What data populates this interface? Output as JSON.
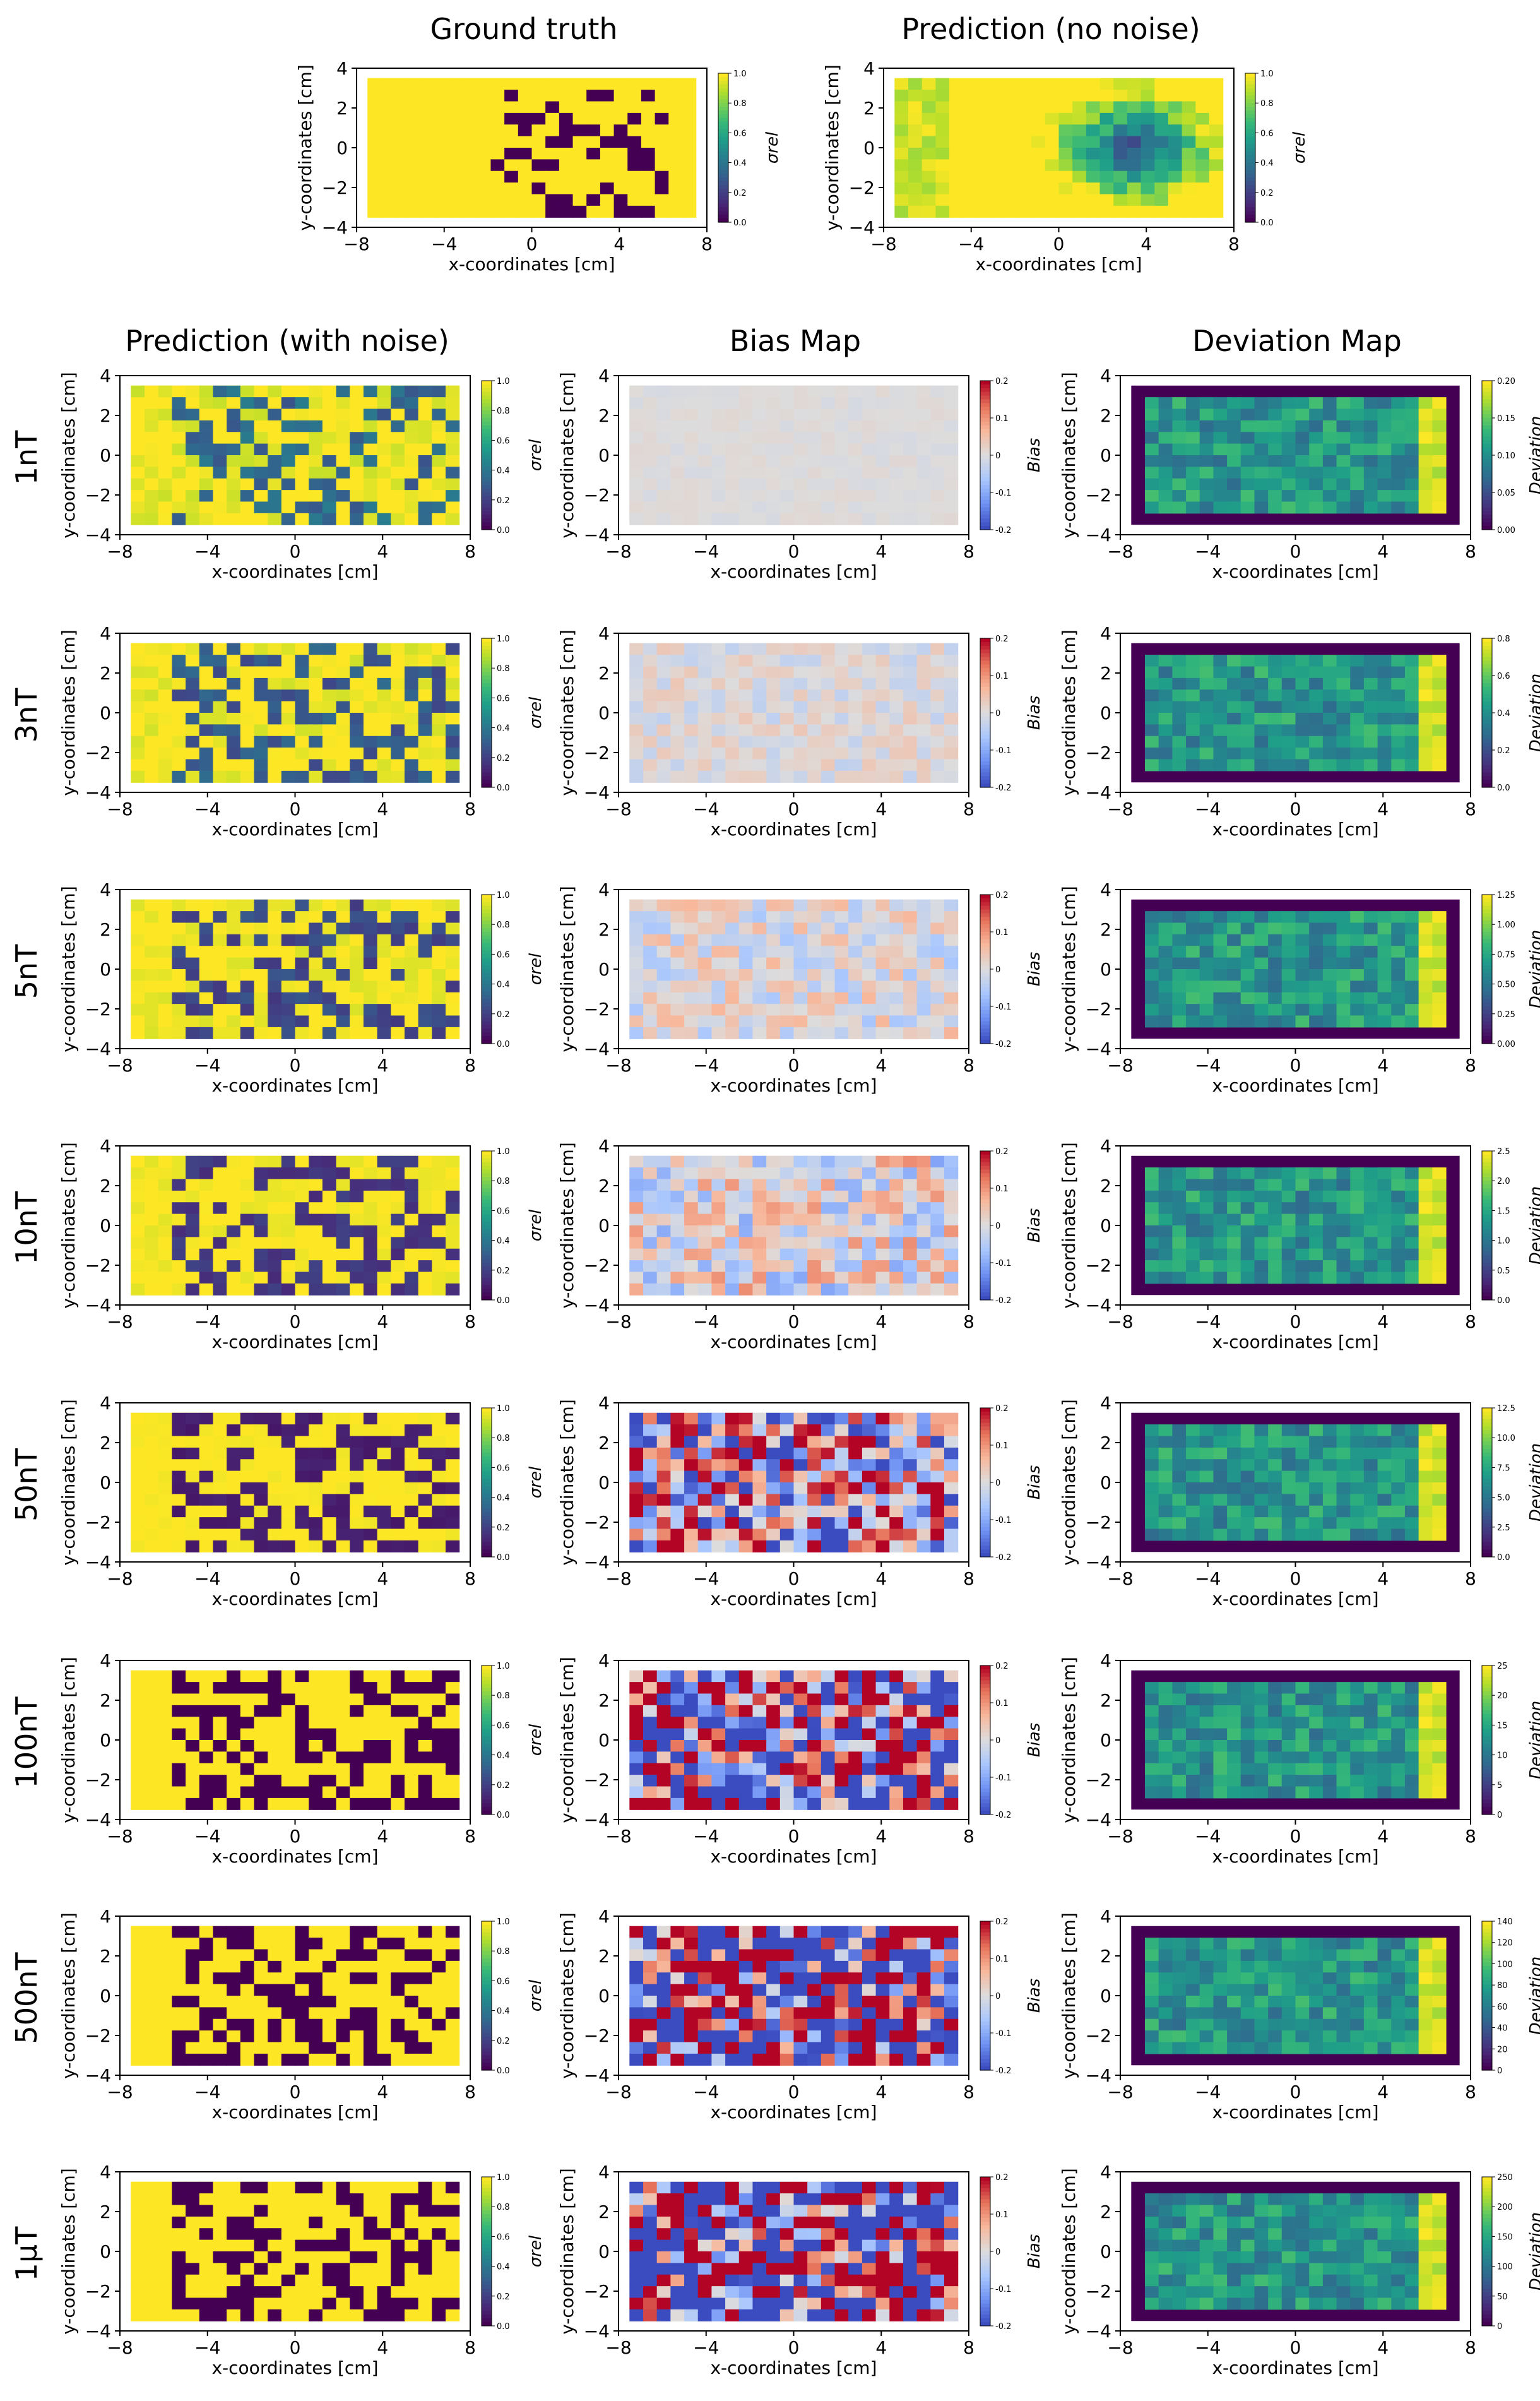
{
  "headers": {
    "ground_truth": "Ground truth",
    "prediction_no_noise": "Prediction (no noise)",
    "prediction_with_noise": "Prediction (with noise)",
    "bias_map": "Bias Map",
    "deviation_map": "Deviation Map"
  },
  "row_labels": [
    "1nT",
    "3nT",
    "5nT",
    "10nT",
    "50nT",
    "100nT",
    "500nT",
    "1µT"
  ],
  "axes": {
    "xlabel": "x-coordinates [cm]",
    "ylabel": "y-coordinates [cm]",
    "xticks": [
      "−8",
      "−4",
      "0",
      "4",
      "8"
    ],
    "yticks": [
      "4",
      "2",
      "0",
      "−2",
      "−4"
    ]
  },
  "colorbars": {
    "sigma": {
      "label": "σrel",
      "ticks": [
        "1.0",
        "0.8",
        "0.6",
        "0.4",
        "0.2",
        "0.0"
      ],
      "colormap": "viridis"
    },
    "bias": {
      "label": "Bias",
      "ticks": [
        "0.2",
        "0.1",
        "0",
        "-0.1",
        "-0.2"
      ],
      "colormap": "coolwarm"
    },
    "deviation": {
      "label": "Deviation",
      "colormap": "viridis",
      "ticks_by_row": [
        [
          "0.20",
          "0.15",
          "0.10",
          "0.05",
          "0.00"
        ],
        [
          "0.8",
          "0.6",
          "0.4",
          "0.2",
          "0.0"
        ],
        [
          "1.25",
          "1.00",
          "0.75",
          "0.50",
          "0.25",
          "0.00"
        ],
        [
          "2.5",
          "2.0",
          "1.5",
          "1.0",
          "0.5",
          "0.0"
        ],
        [
          "12.5",
          "10.0",
          "7.5",
          "5.0",
          "2.5",
          "0.0"
        ],
        [
          "25",
          "20",
          "15",
          "10",
          "5",
          "0"
        ],
        [
          "140",
          "120",
          "100",
          "80",
          "60",
          "40",
          "20",
          "0"
        ],
        [
          "250",
          "200",
          "150",
          "100",
          "50",
          "0"
        ]
      ]
    }
  },
  "colors": {
    "viridis_low": "#440154",
    "viridis_mid": "#21918c",
    "viridis_high": "#fde725",
    "coolwarm_low": "#3b4cc0",
    "coolwarm_mid": "#dddddd",
    "coolwarm_high": "#b40426",
    "bias_background": "#dcdcdc"
  },
  "chart_data": {
    "type": "heatmap",
    "grid": {
      "x_range": [
        -8,
        8
      ],
      "y_range": [
        -4,
        4
      ],
      "domain_x": [
        -7.5,
        7.5
      ],
      "domain_y": [
        -3.5,
        3.5
      ],
      "cols": 24,
      "rows": 12
    },
    "ground_truth": {
      "sigma_range": [
        0.0,
        1.0
      ],
      "note_values": "binary: inclusions 0.0 in background 1.0"
    },
    "noise_levels": [
      "1nT",
      "3nT",
      "5nT",
      "10nT",
      "50nT",
      "100nT",
      "500nT",
      "1µT"
    ],
    "bias_range": [
      -0.2,
      0.2
    ],
    "deviation_max": [
      0.2,
      0.8,
      1.3,
      2.7,
      13,
      26,
      145,
      270
    ]
  }
}
